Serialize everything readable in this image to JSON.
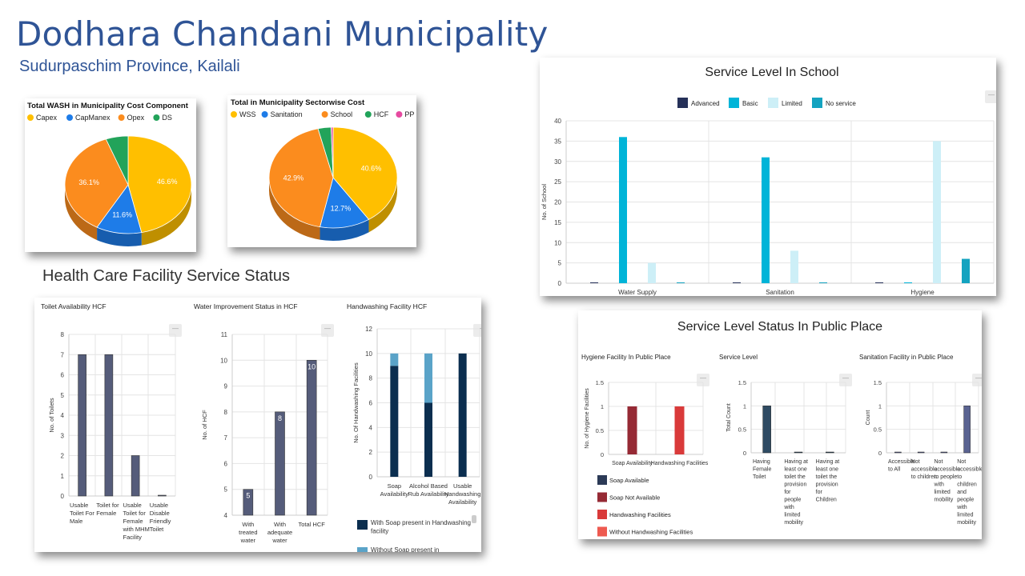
{
  "header": {
    "title": "Dodhara Chandani Municipality",
    "subtitle": "Sudurpaschim Province, Kailali"
  },
  "health_section_title": "Health Care Facility Service Status",
  "chart_data": [
    {
      "id": "wash_cost",
      "type": "pie",
      "title": "Total WASH in Municipality Cost Component",
      "categories": [
        "Capex",
        "CapManex",
        "Opex",
        "DS"
      ],
      "values": [
        46.6,
        11.6,
        36.1,
        5.7
      ],
      "labels": [
        "46.6%",
        "11.6%",
        "36.1%",
        ""
      ],
      "colors": [
        "#FFBF00",
        "#1E7CE8",
        "#FB8C1E",
        "#22A35A"
      ],
      "legend": "top"
    },
    {
      "id": "sector_cost",
      "type": "pie",
      "title": "Total in Municipality Sectorwise Cost",
      "categories": [
        "WSS",
        "Sanitation",
        "School",
        "HCF",
        "PP"
      ],
      "values": [
        40.6,
        12.7,
        42.9,
        3.3,
        0.5
      ],
      "labels": [
        "40.6%",
        "12.7%",
        "42.9%",
        "",
        ""
      ],
      "colors": [
        "#FFBF00",
        "#1E7CE8",
        "#FB8C1E",
        "#22A35A",
        "#E64AA0"
      ],
      "legend": "top"
    },
    {
      "id": "school",
      "type": "bar",
      "title": "Service Level In School",
      "ylabel": "No. of School",
      "ylim": [
        0,
        40
      ],
      "yticks": [
        "0",
        "5",
        "10",
        "15",
        "20",
        "25",
        "30",
        "35",
        "40"
      ],
      "categories": [
        "Water Supply",
        "Sanitation",
        "Hygiene"
      ],
      "series": [
        {
          "name": "Advanced",
          "color": "#263159",
          "values": [
            0,
            0,
            0
          ]
        },
        {
          "name": "Basic",
          "color": "#00B4D8",
          "values": [
            36,
            31,
            0
          ]
        },
        {
          "name": "Limited",
          "color": "#CDEFF7",
          "values": [
            5,
            8,
            35
          ]
        },
        {
          "name": "No service",
          "color": "#14A3C0",
          "values": [
            0,
            0,
            6
          ]
        }
      ],
      "legend": "top"
    },
    {
      "id": "toilet_hcf",
      "type": "bar",
      "title": "Toilet Availability HCF",
      "ylabel": "No. of Toilets",
      "ylim": [
        0,
        8
      ],
      "yticks": [
        "0",
        "1",
        "2",
        "3",
        "4",
        "5",
        "6",
        "7",
        "8"
      ],
      "categories": [
        [
          "Usable",
          "Toilet For",
          "Male"
        ],
        [
          "Toilet for",
          "Female"
        ],
        [
          "Usable",
          "Toilet for",
          "Female",
          "with MHM",
          "Facility"
        ],
        [
          "Usable",
          "Disable",
          "Friendly",
          "Toilet"
        ]
      ],
      "values": [
        7,
        7,
        2,
        0
      ],
      "color": "#555C7A"
    },
    {
      "id": "water_hcf",
      "type": "bar",
      "title": "Water Improvement Status in HCF",
      "ylabel": "No. of HCF",
      "ylim": [
        4,
        11
      ],
      "yticks": [
        "4",
        "5",
        "6",
        "7",
        "8",
        "9",
        "10",
        "11"
      ],
      "categories": [
        [
          "With",
          "treated",
          "water"
        ],
        [
          "With",
          "adequate",
          "water"
        ],
        [
          "Total HCF"
        ]
      ],
      "values": [
        5,
        8,
        10
      ],
      "data_labels": [
        "5",
        "8",
        "10"
      ],
      "color": "#555C7A"
    },
    {
      "id": "handwash_hcf",
      "type": "bar",
      "stacked": true,
      "title": "Handwashing Facility HCF",
      "ylabel": "No. Of Handwashing Facilities",
      "ylim": [
        0,
        12
      ],
      "yticks": [
        "0",
        "2",
        "4",
        "6",
        "8",
        "10",
        "12"
      ],
      "categories": [
        [
          "Soap",
          "Availability"
        ],
        [
          "Alcohol Based",
          "Rub Availability"
        ],
        [
          "Usable",
          "Handwashing",
          "Availability"
        ]
      ],
      "series": [
        {
          "name": "With Soap present in Handwashing facility",
          "color": "#0B2E4F",
          "values": [
            9,
            6,
            10
          ]
        },
        {
          "name": "Without Soap present in",
          "color": "#5AA3C8",
          "values": [
            1,
            4,
            0
          ]
        }
      ],
      "legend_lines": [
        [
          "With Soap present in Handwashing",
          "facility"
        ],
        [
          "Without Soap present in"
        ]
      ]
    },
    {
      "id": "pp_hygiene",
      "type": "bar",
      "title": "Hygiene Facility In Public Place",
      "ylabel": "No. of Hygiene Facilities",
      "ylim": [
        0,
        1.5
      ],
      "yticks": [
        "0",
        "0.5",
        "1",
        "1.5"
      ],
      "categories": [
        [
          "Soap Availability"
        ],
        [
          "Handwashing Facilities"
        ]
      ],
      "series": [
        {
          "name": "Soap Available",
          "color": "#2B3A56",
          "values": [
            0,
            0
          ]
        },
        {
          "name": "Soap Not Available",
          "color": "#962A35",
          "values": [
            1,
            0
          ]
        },
        {
          "name": "Handwashing Facilities",
          "color": "#D93A3A",
          "values": [
            0,
            1
          ]
        },
        {
          "name": "Without Handwashing Facilities",
          "color": "#EE5A50",
          "values": [
            0,
            0
          ]
        }
      ]
    },
    {
      "id": "pp_service",
      "type": "bar",
      "title": "Service Level",
      "ylabel": "Total Count",
      "ylim": [
        0,
        1.5
      ],
      "yticks": [
        "0",
        "0.5",
        "1",
        "1.5"
      ],
      "categories": [
        [
          "Having",
          "Female",
          "Toilet"
        ],
        [
          "Having at",
          "least one",
          "toilet the",
          "provision",
          "for",
          "people",
          "with",
          "limited",
          "mobility"
        ],
        [
          "Having at",
          "least one",
          "toilet the",
          "provision",
          "for",
          "Children"
        ]
      ],
      "values": [
        1,
        0,
        0
      ],
      "color": "#2F4B63"
    },
    {
      "id": "pp_sanitation",
      "type": "bar",
      "title": "Sanitation Facility in Public Place",
      "ylabel": "Count",
      "ylim": [
        0,
        1.5
      ],
      "yticks": [
        "0",
        "0.5",
        "1",
        "1.5"
      ],
      "categories": [
        [
          "Accessible",
          "to All"
        ],
        [
          "Not",
          "accessible",
          "to children"
        ],
        [
          "Not",
          "accessible",
          "to people",
          "with",
          "limited",
          "mobility"
        ],
        [
          "Not",
          "accessible",
          "to",
          "children",
          "and",
          "people",
          "with",
          "limited",
          "mobility"
        ]
      ],
      "values": [
        0,
        0,
        0,
        1
      ],
      "color": "#5A6391"
    }
  ],
  "public_place_title": "Service Level Status In Public Place"
}
